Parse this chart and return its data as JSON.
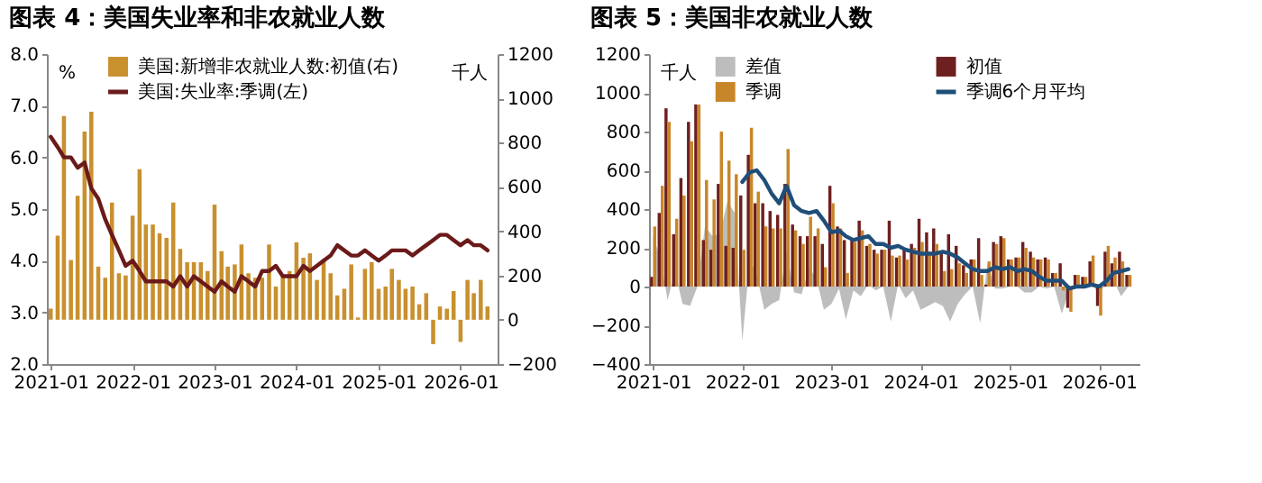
{
  "chart_data": [
    {
      "type": "bar",
      "title": "图表 4：美国失业率和非农就业人数",
      "ylabel": "%",
      "y2label": "千人",
      "x": [
        "2021-01",
        "2021-02",
        "2021-03",
        "2021-04",
        "2021-05",
        "2021-06",
        "2021-07",
        "2021-08",
        "2021-09",
        "2021-10",
        "2021-11",
        "2021-12",
        "2022-01",
        "2022-02",
        "2022-03",
        "2022-04",
        "2022-05",
        "2022-06",
        "2022-07",
        "2022-08",
        "2022-09",
        "2022-10",
        "2022-11",
        "2022-12",
        "2023-01",
        "2023-02",
        "2023-03",
        "2023-04",
        "2023-05",
        "2023-06",
        "2023-07",
        "2023-08",
        "2023-09",
        "2023-10",
        "2023-11",
        "2023-12",
        "2024-01",
        "2024-02",
        "2024-03",
        "2024-04",
        "2024-05",
        "2024-06",
        "2024-07",
        "2024-08",
        "2024-09",
        "2024-10",
        "2024-11",
        "2024-12",
        "2025-01",
        "2025-02",
        "2025-03",
        "2025-04",
        "2025-05",
        "2025-06",
        "2025-07",
        "2025-08",
        "2025-09",
        "2025-10",
        "2025-11",
        "2025-12",
        "2026-01",
        "2026-02",
        "2026-03",
        "2026-04",
        "2026-05"
      ],
      "series": [
        {
          "name": "美国:新增非农就业人数:初值(右)",
          "axis": "y2",
          "color": "#c8902e",
          "values": [
            50,
            380,
            920,
            270,
            560,
            850,
            940,
            240,
            190,
            530,
            210,
            200,
            470,
            680,
            430,
            430,
            390,
            370,
            530,
            320,
            260,
            260,
            260,
            220,
            520,
            310,
            240,
            250,
            340,
            210,
            190,
            190,
            340,
            150,
            200,
            220,
            350,
            280,
            300,
            180,
            270,
            210,
            110,
            140,
            250,
            10,
            230,
            260,
            140,
            150,
            230,
            180,
            140,
            150,
            70,
            120,
            -110,
            60,
            50,
            130,
            -100,
            180,
            120,
            180,
            60
          ]
        },
        {
          "name": "美国:失业率:季调(左)",
          "type": "line",
          "axis": "y",
          "color": "#6b1a1a",
          "values": [
            6.4,
            6.2,
            6.0,
            6.0,
            5.8,
            5.9,
            5.4,
            5.2,
            4.8,
            4.5,
            4.2,
            3.9,
            4.0,
            3.8,
            3.6,
            3.6,
            3.6,
            3.6,
            3.5,
            3.7,
            3.5,
            3.7,
            3.6,
            3.5,
            3.4,
            3.6,
            3.5,
            3.4,
            3.7,
            3.6,
            3.5,
            3.8,
            3.8,
            3.9,
            3.7,
            3.7,
            3.7,
            3.9,
            3.8,
            3.9,
            4.0,
            4.1,
            4.3,
            4.2,
            4.1,
            4.1,
            4.2,
            4.1,
            4.0,
            4.1,
            4.2,
            4.2,
            4.2,
            4.1,
            4.2,
            4.3,
            4.4,
            4.5,
            4.5,
            4.4,
            4.3,
            4.4,
            4.3,
            4.3,
            4.2
          ]
        }
      ],
      "xlim": [
        "2020-12-15",
        "2026-06-15"
      ],
      "xticks": [
        {
          "value": "2021-01",
          "label": "2021-01"
        },
        {
          "value": "2022-01",
          "label": "2022-01"
        },
        {
          "value": "2023-01",
          "label": "2023-01"
        },
        {
          "value": "2024-01",
          "label": "2024-01"
        },
        {
          "value": "2025-01",
          "label": "2025-01"
        },
        {
          "value": "2026-01",
          "label": "2026-01"
        }
      ],
      "ylim": [
        2,
        8
      ],
      "yticks": [
        {
          "value": 2,
          "label": "2.0"
        },
        {
          "value": 3,
          "label": "3.0"
        },
        {
          "value": 4,
          "label": "4.0"
        },
        {
          "value": 5,
          "label": "5.0"
        },
        {
          "value": 6,
          "label": "6.0"
        },
        {
          "value": 7,
          "label": "7.0"
        },
        {
          "value": 8,
          "label": "8.0"
        }
      ],
      "y2lim": [
        -200,
        1200
      ],
      "y2ticks": [
        -200,
        0,
        200,
        400,
        600,
        800,
        1000,
        1200
      ],
      "grid": false,
      "legend": "top"
    },
    {
      "type": "bar",
      "title": "图表 5：美国非农就业人数",
      "ylabel": "千人",
      "x": [
        "2021-01",
        "2021-02",
        "2021-03",
        "2021-04",
        "2021-05",
        "2021-06",
        "2021-07",
        "2021-08",
        "2021-09",
        "2021-10",
        "2021-11",
        "2021-12",
        "2022-01",
        "2022-02",
        "2022-03",
        "2022-04",
        "2022-05",
        "2022-06",
        "2022-07",
        "2022-08",
        "2022-09",
        "2022-10",
        "2022-11",
        "2022-12",
        "2023-01",
        "2023-02",
        "2023-03",
        "2023-04",
        "2023-05",
        "2023-06",
        "2023-07",
        "2023-08",
        "2023-09",
        "2023-10",
        "2023-11",
        "2023-12",
        "2024-01",
        "2024-02",
        "2024-03",
        "2024-04",
        "2024-05",
        "2024-06",
        "2024-07",
        "2024-08",
        "2024-09",
        "2024-10",
        "2024-11",
        "2024-12",
        "2025-01",
        "2025-02",
        "2025-03",
        "2025-04",
        "2025-05",
        "2025-06",
        "2025-07",
        "2025-08",
        "2025-09",
        "2025-10",
        "2025-11",
        "2025-12",
        "2026-01",
        "2026-02",
        "2026-03",
        "2026-04",
        "2026-05"
      ],
      "series": [
        {
          "name": "差值",
          "type": "area",
          "color": "#bdbdbd",
          "values": [
            260,
            140,
            -70,
            80,
            -90,
            -100,
            0,
            310,
            260,
            270,
            440,
            380,
            -280,
            140,
            60,
            -120,
            -90,
            -70,
            180,
            -30,
            -40,
            100,
            40,
            -120,
            -90,
            -10,
            -170,
            -20,
            -50,
            10,
            -20,
            0,
            -180,
            10,
            -60,
            -20,
            -120,
            -100,
            -80,
            -100,
            -180,
            -90,
            -40,
            0,
            -190,
            120,
            -10,
            -10,
            0,
            0,
            -30,
            -30,
            0,
            -10,
            0,
            -140,
            -20,
            0,
            0,
            30,
            -50,
            30,
            30,
            -50,
            0
          ]
        },
        {
          "name": "初值",
          "color": "#6e1f1f",
          "values": [
            50,
            380,
            920,
            270,
            560,
            850,
            940,
            240,
            190,
            530,
            210,
            200,
            470,
            680,
            430,
            430,
            390,
            370,
            530,
            320,
            260,
            260,
            260,
            220,
            520,
            310,
            240,
            250,
            340,
            210,
            190,
            190,
            340,
            150,
            200,
            220,
            350,
            280,
            300,
            180,
            270,
            210,
            110,
            140,
            250,
            10,
            230,
            260,
            140,
            150,
            230,
            180,
            140,
            150,
            70,
            120,
            -110,
            60,
            50,
            130,
            -100,
            180,
            120,
            180,
            60
          ]
        },
        {
          "name": "季调",
          "color": "#c8862a",
          "values": [
            310,
            520,
            850,
            350,
            470,
            750,
            940,
            550,
            450,
            800,
            650,
            580,
            190,
            820,
            490,
            310,
            300,
            300,
            710,
            290,
            220,
            360,
            300,
            100,
            430,
            300,
            70,
            230,
            290,
            220,
            170,
            190,
            160,
            160,
            140,
            200,
            230,
            180,
            220,
            80,
            90,
            120,
            70,
            140,
            60,
            130,
            220,
            250,
            140,
            150,
            200,
            150,
            140,
            140,
            70,
            -20,
            -130,
            60,
            50,
            160,
            -150,
            210,
            150,
            130,
            60
          ]
        },
        {
          "name": "季调6个月平均",
          "type": "line",
          "color": "#1f4e79",
          "values": [
            null,
            null,
            null,
            null,
            null,
            null,
            null,
            null,
            null,
            null,
            null,
            null,
            540,
            590,
            600,
            550,
            480,
            430,
            520,
            420,
            390,
            380,
            390,
            340,
            280,
            290,
            260,
            240,
            250,
            260,
            220,
            220,
            200,
            210,
            190,
            180,
            170,
            170,
            170,
            180,
            170,
            150,
            120,
            90,
            80,
            80,
            100,
            90,
            100,
            80,
            90,
            80,
            50,
            30,
            30,
            30,
            -10,
            0,
            0,
            10,
            0,
            30,
            70,
            80,
            90
          ]
        }
      ],
      "xlim": [
        "2020-12-15",
        "2026-06-15"
      ],
      "xticks": [
        {
          "value": "2021-01",
          "label": "2021-01"
        },
        {
          "value": "2022-01",
          "label": "2022-01"
        },
        {
          "value": "2023-01",
          "label": "2023-01"
        },
        {
          "value": "2024-01",
          "label": "2024-01"
        },
        {
          "value": "2025-01",
          "label": "2025-01"
        },
        {
          "value": "2026-01",
          "label": "2026-01"
        }
      ],
      "ylim": [
        -400,
        1200
      ],
      "yticks": [
        -400,
        -200,
        0,
        200,
        400,
        600,
        800,
        1000,
        1200
      ],
      "grid": false,
      "legend": "top"
    }
  ]
}
